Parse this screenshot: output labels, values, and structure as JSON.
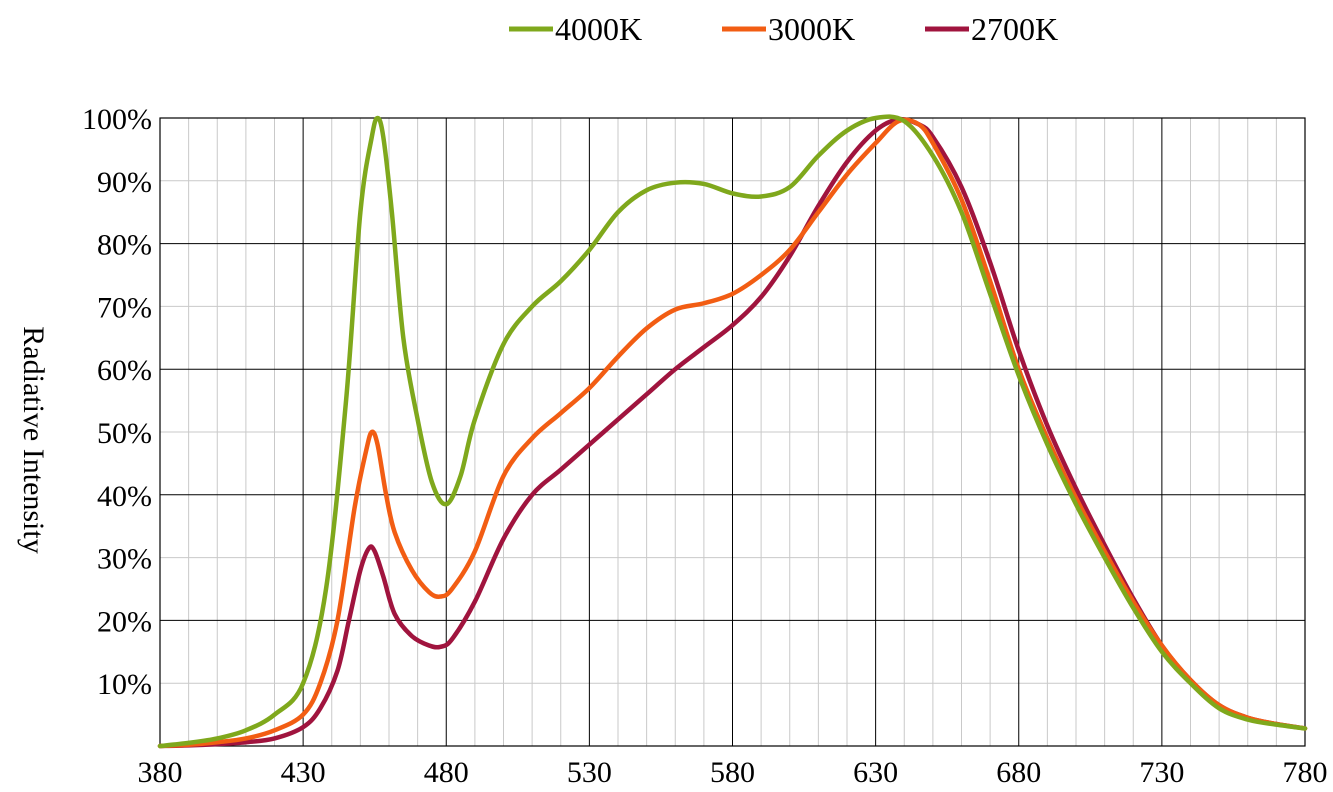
{
  "chart_data": {
    "type": "line",
    "title": "",
    "xlabel": "",
    "ylabel": "Radiative  Intensity",
    "xlim": [
      380,
      780
    ],
    "ylim": [
      0,
      100
    ],
    "x_ticks": [
      380,
      430,
      480,
      530,
      580,
      630,
      680,
      730,
      780
    ],
    "y_ticks": [
      10,
      20,
      30,
      40,
      50,
      60,
      70,
      80,
      90,
      100
    ],
    "y_tick_labels": [
      "10%",
      "20%",
      "30%",
      "40%",
      "50%",
      "60%",
      "70%",
      "80%",
      "90%",
      "100%"
    ],
    "grid": true,
    "legend_position": "top",
    "series": [
      {
        "name": "4000K",
        "color": "#7fa81c",
        "points": [
          [
            380,
            0
          ],
          [
            390,
            0.5
          ],
          [
            400,
            1.2
          ],
          [
            410,
            2.5
          ],
          [
            420,
            5
          ],
          [
            430,
            10
          ],
          [
            438,
            25
          ],
          [
            445,
            55
          ],
          [
            450,
            85
          ],
          [
            454,
            97
          ],
          [
            456,
            100
          ],
          [
            458,
            97
          ],
          [
            461,
            85
          ],
          [
            465,
            65
          ],
          [
            470,
            52
          ],
          [
            475,
            42
          ],
          [
            480,
            38.5
          ],
          [
            485,
            43
          ],
          [
            490,
            52
          ],
          [
            500,
            64
          ],
          [
            510,
            70
          ],
          [
            520,
            74
          ],
          [
            530,
            79
          ],
          [
            540,
            85
          ],
          [
            550,
            88.5
          ],
          [
            560,
            89.7
          ],
          [
            570,
            89.5
          ],
          [
            580,
            88
          ],
          [
            590,
            87.5
          ],
          [
            600,
            89
          ],
          [
            610,
            94
          ],
          [
            620,
            98
          ],
          [
            630,
            100
          ],
          [
            640,
            99.5
          ],
          [
            650,
            94
          ],
          [
            660,
            85
          ],
          [
            670,
            72
          ],
          [
            680,
            59
          ],
          [
            690,
            48
          ],
          [
            700,
            38.5
          ],
          [
            710,
            30
          ],
          [
            720,
            22
          ],
          [
            730,
            15
          ],
          [
            740,
            10
          ],
          [
            750,
            6
          ],
          [
            760,
            4.2
          ],
          [
            770,
            3.4
          ],
          [
            780,
            2.8
          ]
        ]
      },
      {
        "name": "3000K",
        "color": "#f25d13",
        "points": [
          [
            380,
            0
          ],
          [
            390,
            0.2
          ],
          [
            400,
            0.6
          ],
          [
            410,
            1.2
          ],
          [
            420,
            2.5
          ],
          [
            430,
            5
          ],
          [
            436,
            10
          ],
          [
            442,
            20
          ],
          [
            448,
            38
          ],
          [
            452,
            47
          ],
          [
            454,
            50
          ],
          [
            456,
            48
          ],
          [
            459,
            40
          ],
          [
            462,
            34
          ],
          [
            468,
            28
          ],
          [
            474,
            24.5
          ],
          [
            478,
            23.8
          ],
          [
            482,
            25
          ],
          [
            490,
            31
          ],
          [
            500,
            43
          ],
          [
            510,
            49
          ],
          [
            520,
            53
          ],
          [
            530,
            57
          ],
          [
            540,
            62
          ],
          [
            550,
            66.5
          ],
          [
            560,
            69.5
          ],
          [
            570,
            70.5
          ],
          [
            580,
            72
          ],
          [
            590,
            75
          ],
          [
            600,
            79
          ],
          [
            610,
            85
          ],
          [
            620,
            91
          ],
          [
            630,
            96
          ],
          [
            638,
            99.5
          ],
          [
            645,
            99
          ],
          [
            650,
            96
          ],
          [
            660,
            87
          ],
          [
            670,
            74
          ],
          [
            680,
            60
          ],
          [
            690,
            49
          ],
          [
            700,
            39.5
          ],
          [
            710,
            31
          ],
          [
            720,
            23
          ],
          [
            730,
            16
          ],
          [
            740,
            10.5
          ],
          [
            750,
            6.5
          ],
          [
            760,
            4.5
          ],
          [
            770,
            3.5
          ],
          [
            780,
            2.8
          ]
        ]
      },
      {
        "name": "2700K",
        "color": "#a0143e",
        "points": [
          [
            380,
            0
          ],
          [
            390,
            0.1
          ],
          [
            400,
            0.3
          ],
          [
            410,
            0.6
          ],
          [
            420,
            1.2
          ],
          [
            430,
            3
          ],
          [
            436,
            6
          ],
          [
            442,
            12
          ],
          [
            446,
            20
          ],
          [
            450,
            28
          ],
          [
            453,
            31.5
          ],
          [
            455,
            31
          ],
          [
            458,
            27
          ],
          [
            462,
            21
          ],
          [
            468,
            17.5
          ],
          [
            474,
            16
          ],
          [
            478,
            15.8
          ],
          [
            482,
            17
          ],
          [
            490,
            23
          ],
          [
            500,
            33
          ],
          [
            510,
            40
          ],
          [
            520,
            44
          ],
          [
            530,
            48
          ],
          [
            540,
            52
          ],
          [
            550,
            56
          ],
          [
            560,
            60
          ],
          [
            570,
            63.5
          ],
          [
            580,
            67
          ],
          [
            590,
            71.5
          ],
          [
            600,
            78
          ],
          [
            610,
            86
          ],
          [
            620,
            93
          ],
          [
            630,
            98
          ],
          [
            638,
            99.8
          ],
          [
            645,
            99
          ],
          [
            650,
            97
          ],
          [
            660,
            89
          ],
          [
            670,
            77
          ],
          [
            680,
            63
          ],
          [
            690,
            51
          ],
          [
            700,
            41
          ],
          [
            710,
            32
          ],
          [
            720,
            23.5
          ],
          [
            730,
            16
          ],
          [
            740,
            10.5
          ],
          [
            750,
            6.5
          ],
          [
            760,
            4.5
          ],
          [
            770,
            3.5
          ],
          [
            780,
            2.8
          ]
        ]
      }
    ]
  }
}
